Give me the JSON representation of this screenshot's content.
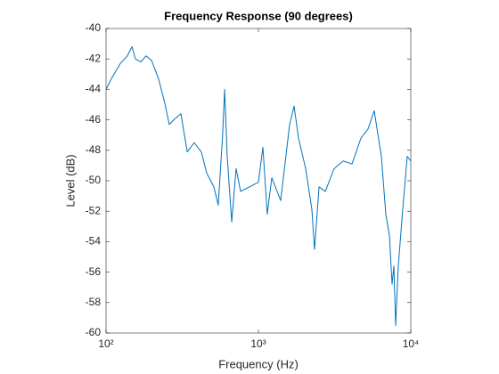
{
  "chart_data": {
    "type": "line",
    "title": "Frequency Response (90 degrees)",
    "x_label": "Frequency (Hz)",
    "y_label": "Level (dB)",
    "x_scale": "log",
    "xlim": [
      100,
      10000
    ],
    "xticks": [
      {
        "value": 100,
        "label": "10²"
      },
      {
        "value": 1000,
        "label": "10³"
      },
      {
        "value": 10000,
        "label": "10⁴"
      }
    ],
    "ylim": [
      -60,
      -40
    ],
    "yticks": [
      -60,
      -58,
      -56,
      -54,
      -52,
      -50,
      -48,
      -46,
      -44,
      -42,
      -40
    ],
    "grid": false,
    "x": [
      100,
      108.4,
      124,
      138,
      148,
      156,
      169,
      183,
      199,
      221,
      243,
      260,
      278,
      310,
      341,
      379,
      422,
      458,
      510,
      545,
      583,
      600,
      624,
      668,
      714,
      764,
      874,
      1000,
      1070,
      1143,
      1224,
      1400,
      1603,
      1714,
      1833,
      2042,
      2244,
      2335,
      2500,
      2748,
      3141,
      3597,
      4113,
      4708,
      5240,
      5754,
      6412,
      6855,
      7244,
      7535,
      7742,
      7955,
      8279,
      8851,
      9476,
      10000
    ],
    "series": [
      {
        "color": "#0072bd",
        "values": [
          -44.0,
          -43.3,
          -42.3,
          -41.8,
          -41.2,
          -42.0,
          -42.2,
          -41.8,
          -42.1,
          -43.3,
          -44.9,
          -46.3,
          -46.0,
          -45.6,
          -48.1,
          -47.5,
          -48.1,
          -49.5,
          -50.4,
          -51.6,
          -46.9,
          -44.0,
          -48.4,
          -52.7,
          -49.2,
          -50.7,
          -50.4,
          -50.1,
          -47.8,
          -52.2,
          -49.8,
          -51.3,
          -46.3,
          -45.1,
          -47.2,
          -49.2,
          -51.9,
          -54.5,
          -50.4,
          -50.7,
          -49.2,
          -48.7,
          -48.9,
          -47.2,
          -46.6,
          -45.4,
          -48.4,
          -52.2,
          -53.6,
          -56.8,
          -55.6,
          -59.5,
          -55.6,
          -51.9,
          -48.4,
          -48.7
        ]
      }
    ]
  }
}
